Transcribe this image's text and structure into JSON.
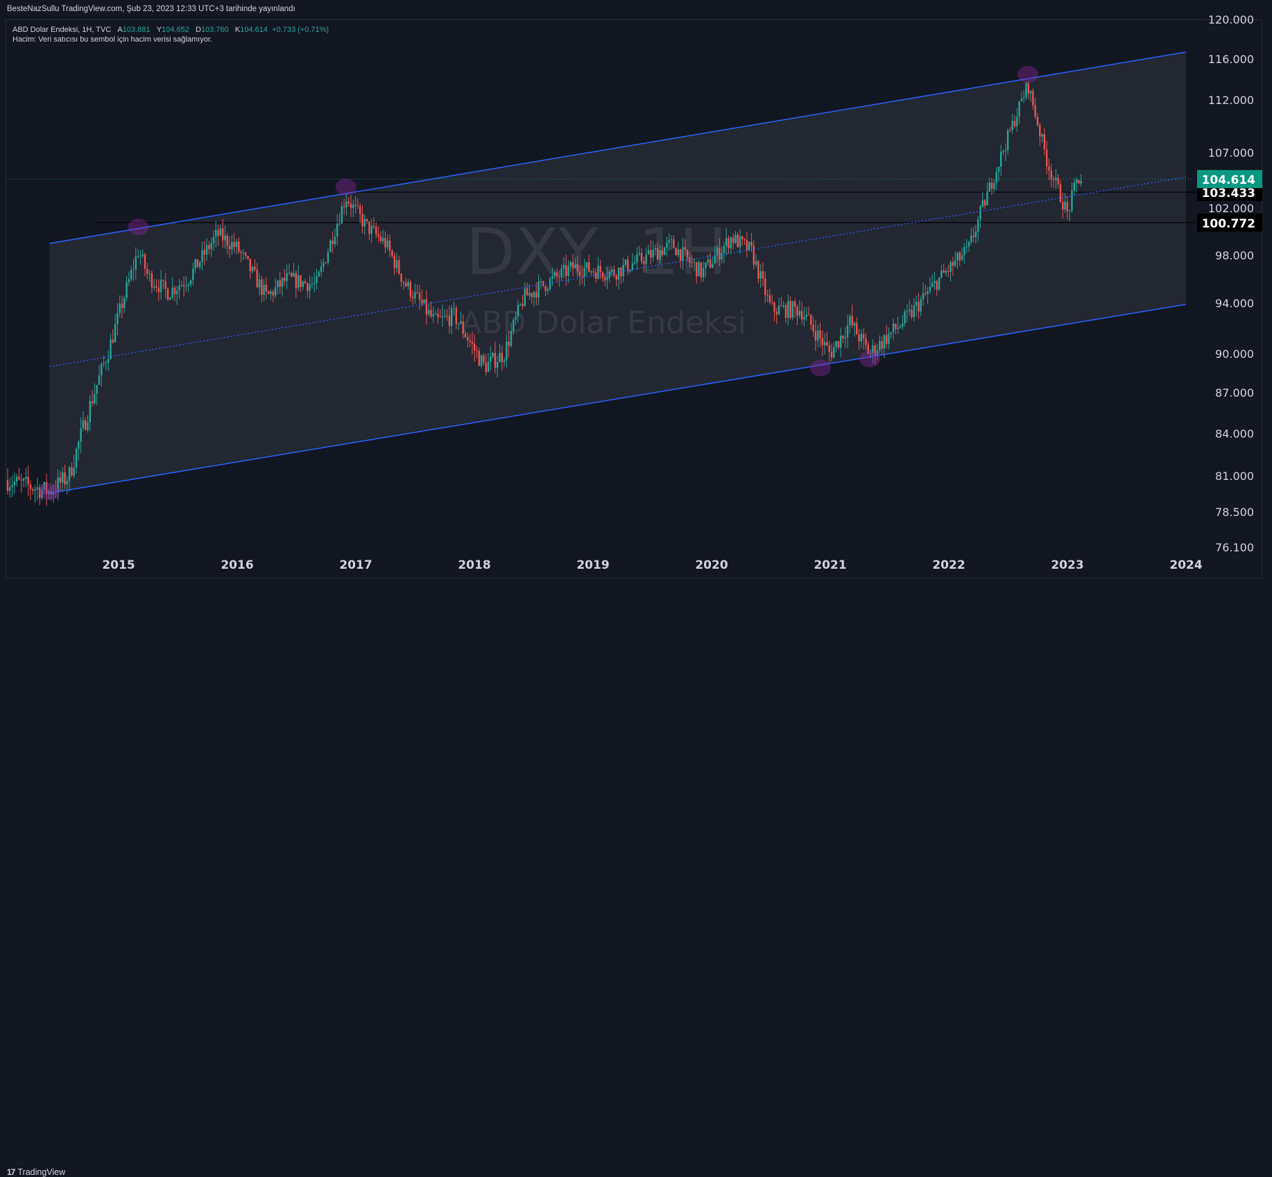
{
  "header": {
    "published": "BesteNazSullu TradingView.com, Şub 23, 2023 12:33 UTC+3 tarihinde yayınlandı"
  },
  "legend": {
    "symbol": "ABD Dolar Endeksi, 1H, TVC",
    "open_label": "A",
    "open": "103.881",
    "high_label": "Y",
    "high": "104.652",
    "low_label": "D",
    "low": "103.760",
    "close_label": "K",
    "close": "104.614",
    "change": "+0.733 (+0.71%)",
    "volume_note": "Hacim: Veri satıcısı bu sembol için hacim verisi sağlamıyor."
  },
  "watermark": {
    "line1": "DXY, 1H",
    "line2": "ABD Dolar Endeksi"
  },
  "footer": {
    "brand": "TradingView",
    "brand_mark": "17"
  },
  "colors": {
    "background": "#131722",
    "up": "#26a69a",
    "down": "#ef5350",
    "channel": "#2962ff",
    "label_bg": "#000000"
  },
  "chart_data": {
    "type": "candlestick",
    "symbol": "DXY",
    "interval": "1H",
    "y_ticks": [
      "76.100",
      "78.500",
      "81.000",
      "84.000",
      "87.000",
      "90.000",
      "94.000",
      "98.000",
      "102.000",
      "107.000",
      "112.000",
      "116.000",
      "120.000"
    ],
    "x_ticks": [
      "2015",
      "2016",
      "2017",
      "2018",
      "2019",
      "2020",
      "2021",
      "2022",
      "2023",
      "2024"
    ],
    "last_price": {
      "label": "104.614",
      "value": 104.614,
      "color": "#089981"
    },
    "price_labels": [
      {
        "label": "103.433",
        "value": 103.433
      },
      {
        "label": "100.772",
        "value": 100.772
      }
    ],
    "price_path": [
      [
        "2014-01",
        80.8
      ],
      [
        "2014-06",
        79.9
      ],
      [
        "2014-08",
        81.0
      ],
      [
        "2014-10",
        85.8
      ],
      [
        "2014-12",
        90.3
      ],
      [
        "2015-03",
        98.4
      ],
      [
        "2015-04",
        96.2
      ],
      [
        "2015-06",
        94.9
      ],
      [
        "2015-08",
        96.0
      ],
      [
        "2015-11",
        99.8
      ],
      [
        "2016-01",
        98.6
      ],
      [
        "2016-04",
        94.5
      ],
      [
        "2016-06",
        96.0
      ],
      [
        "2016-09",
        95.5
      ],
      [
        "2016-12",
        103.0
      ],
      [
        "2017-02",
        100.5
      ],
      [
        "2017-04",
        99.0
      ],
      [
        "2017-06",
        95.6
      ],
      [
        "2017-09",
        92.5
      ],
      [
        "2017-11",
        93.0
      ],
      [
        "2018-02",
        89.0
      ],
      [
        "2018-04",
        90.0
      ],
      [
        "2018-06",
        94.5
      ],
      [
        "2018-11",
        97.0
      ],
      [
        "2019-03",
        96.5
      ],
      [
        "2019-09",
        98.9
      ],
      [
        "2019-12",
        96.5
      ],
      [
        "2020-03",
        99.5
      ],
      [
        "2020-05",
        98.4
      ],
      [
        "2020-07",
        93.5
      ],
      [
        "2020-10",
        93.5
      ],
      [
        "2021-01",
        90.0
      ],
      [
        "2021-03",
        92.5
      ],
      [
        "2021-05",
        90.0
      ],
      [
        "2021-09",
        93.0
      ],
      [
        "2021-12",
        96.0
      ],
      [
        "2022-03",
        98.5
      ],
      [
        "2022-05",
        103.5
      ],
      [
        "2022-09",
        113.5
      ],
      [
        "2022-11",
        106.0
      ],
      [
        "2023-01",
        101.5
      ],
      [
        "2023-02",
        104.6
      ]
    ],
    "channel": {
      "upper": [
        [
          "2014-06",
          99.0
        ],
        [
          "2024-01",
          116.7
        ]
      ],
      "middle": [
        [
          "2014-06",
          89.0
        ],
        [
          "2024-01",
          104.8
        ]
      ],
      "lower": [
        [
          "2014-06",
          79.8
        ],
        [
          "2024-01",
          93.9
        ]
      ]
    },
    "horizontal_levels": [
      103.433,
      100.772
    ],
    "touch_points": [
      [
        "2014-06",
        79.9
      ],
      [
        "2015-03",
        100.4
      ],
      [
        "2016-12",
        103.9
      ],
      [
        "2020-12",
        88.9
      ],
      [
        "2021-05",
        89.6
      ],
      [
        "2022-09",
        114.5
      ]
    ],
    "grid": false
  }
}
